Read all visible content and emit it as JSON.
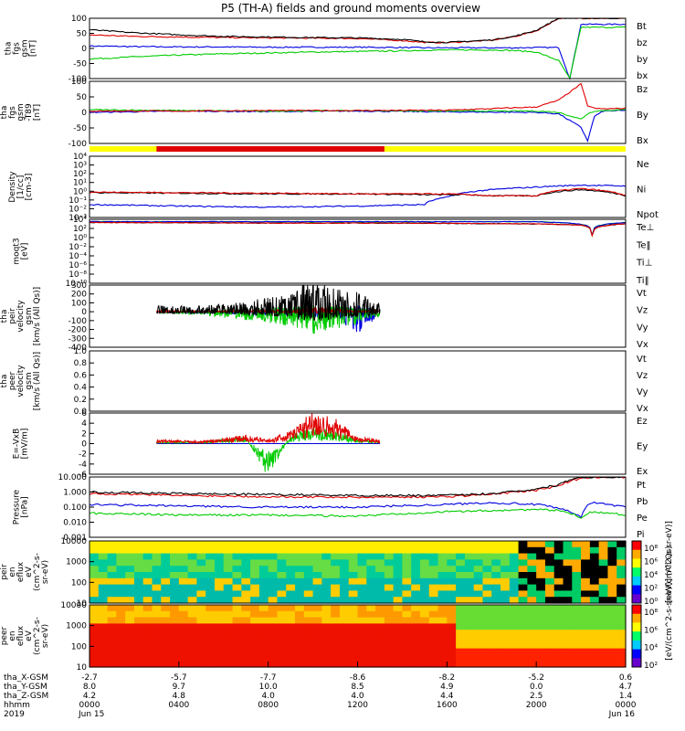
{
  "title": "P5 (TH-A) fields and ground moments overview",
  "legend_colors": {
    "black": "#000000",
    "red": "#e00000",
    "green": "#00cc00",
    "blue": "#0000e0",
    "yellow": "#ffff00"
  },
  "panels": [
    {
      "id": "fgs",
      "ylabel": [
        "tha",
        "fgs",
        "gsm",
        "[nT]"
      ],
      "ylim": [
        -100,
        100
      ],
      "ticks": [
        "100",
        "50",
        "0",
        "-50",
        "-100"
      ],
      "legend": [
        {
          "label": "Bt",
          "color": "#000000"
        },
        {
          "label": "bz",
          "color": "#e00000"
        },
        {
          "label": "by",
          "color": "#00cc00"
        },
        {
          "label": "bx",
          "color": "#0000e0"
        }
      ]
    },
    {
      "id": "fgs_t89",
      "ylabel": [
        "tha",
        "fgs",
        "gsm",
        "-T89",
        "[nT]"
      ],
      "ylim": [
        -120,
        110
      ],
      "ticks": [
        "100",
        "50",
        "0",
        "-50",
        "-100"
      ],
      "legend": [
        {
          "label": "Bz",
          "color": "#e00000"
        },
        {
          "label": "By",
          "color": "#00cc00"
        },
        {
          "label": "Bx",
          "color": "#0000e0"
        }
      ]
    },
    {
      "id": "density",
      "ylabel": [
        "Density",
        "[1/cc]",
        "[cm-3]"
      ],
      "ylim": [
        "1e-3",
        "1e4"
      ],
      "ticks": [
        "10⁴",
        "10³",
        "10²",
        "10¹",
        "10⁰",
        "10⁻¹",
        "10⁻²",
        "10⁻³"
      ],
      "legend": [
        {
          "label": "Ne",
          "color": "#e00000"
        },
        {
          "label": "Ni",
          "color": "#000000"
        },
        {
          "label": "Npot",
          "color": "#0000e0"
        }
      ]
    },
    {
      "id": "temp",
      "ylabel": [
        "moqt3",
        "[eV]"
      ],
      "ylim": [
        "1e-10",
        "1e4"
      ],
      "ticks": [
        "10⁴",
        "10²",
        "10⁰",
        "10⁻²",
        "10⁻⁴",
        "10⁻⁶",
        "10⁻⁸",
        "10⁻¹⁰"
      ],
      "legend": [
        {
          "label": "Te⊥",
          "color": "#e00000"
        },
        {
          "label": "Te‖",
          "color": "#000000"
        },
        {
          "label": "Ti⊥",
          "color": "#0000e0"
        },
        {
          "label": "Ti‖",
          "color": "#00cc00"
        }
      ]
    },
    {
      "id": "peir_v",
      "ylabel": [
        "tha",
        "peir",
        "velocity",
        "gsm",
        "[km/s (All Qs)]"
      ],
      "ylim": [
        -400,
        300
      ],
      "ticks": [
        "300",
        "200",
        "100",
        "0",
        "-100",
        "-200",
        "-300",
        "-400"
      ],
      "legend": [
        {
          "label": "Vt",
          "color": "#000000"
        },
        {
          "label": "Vz",
          "color": "#e00000"
        },
        {
          "label": "Vy",
          "color": "#00cc00"
        },
        {
          "label": "Vx",
          "color": "#0000e0"
        }
      ]
    },
    {
      "id": "peer_v",
      "ylabel": [
        "tha",
        "peer",
        "velocity",
        "gsm",
        "[km/s (All Qs)]"
      ],
      "ylim": [
        0,
        1
      ],
      "ticks": [
        "1.0",
        "0.8",
        "0.6",
        "0.4",
        "0.2",
        "0.0"
      ],
      "legend": [
        {
          "label": "Vt",
          "color": "#000000"
        },
        {
          "label": "Vz",
          "color": "#e00000"
        },
        {
          "label": "Vy",
          "color": "#00cc00"
        },
        {
          "label": "Vx",
          "color": "#0000e0"
        }
      ]
    },
    {
      "id": "efield",
      "ylabel": [
        "E=-VxB",
        "[mV/m]"
      ],
      "ylim": [
        -6,
        6
      ],
      "ticks": [
        "6",
        "4",
        "2",
        "0",
        "-2",
        "-4",
        "-6"
      ],
      "legend": [
        {
          "label": "Ez",
          "color": "#e00000"
        },
        {
          "label": "Ey",
          "color": "#00cc00"
        },
        {
          "label": "Ex",
          "color": "#0000e0"
        }
      ]
    },
    {
      "id": "pressure",
      "ylabel": [
        "Pressure",
        "[nPa]"
      ],
      "ylim": [
        0.001,
        10
      ],
      "ticks": [
        "10.000",
        "1.000",
        "0.100",
        "0.010",
        "0.001"
      ],
      "legend": [
        {
          "label": "Pt",
          "color": "#000000"
        },
        {
          "label": "Pb",
          "color": "#e00000"
        },
        {
          "label": "Pe",
          "color": "#00cc00"
        },
        {
          "label": "Pi",
          "color": "#0000e0"
        }
      ]
    },
    {
      "id": "peir_en",
      "ylabel": [
        "tha",
        "peir",
        "en",
        "eflux",
        "eV",
        "(cm^2-s-",
        "sr-eV)"
      ],
      "ylim": [
        5,
        30000
      ],
      "ticks": [
        "10000",
        "1000",
        "100",
        "10"
      ],
      "colorbar": [
        "10⁸",
        "10⁶",
        "10⁴",
        "10²",
        "10⁰"
      ]
    },
    {
      "id": "peer_en",
      "ylabel": [
        "tha",
        "peer",
        "en",
        "eflux",
        "eV",
        "(cm^2-s-",
        "sr-eV)"
      ],
      "ylim": [
        5,
        30000
      ],
      "ticks": [
        "10000",
        "1000",
        "100",
        "10"
      ],
      "colorbar": [
        "10⁸",
        "10⁶",
        "10⁴",
        "10²"
      ]
    }
  ],
  "colorbar_label": "[eV/(cm^2-s-sr-eV)] (All Qs)",
  "colorbar_label_upper": "[eV/(cm^2-s-sr-eV)]",
  "xaxis": {
    "row_labels": [
      "tha_X-GSM",
      "tha_Y-GSM",
      "tha_Z-GSM",
      "hhmm",
      "2019"
    ],
    "columns": [
      [
        "-2.7",
        "8.0",
        "4.2",
        "0000",
        "Jun 15"
      ],
      [
        "-5.7",
        "9.7",
        "4.8",
        "0400",
        ""
      ],
      [
        "-7.7",
        "10.0",
        "4.0",
        "0800",
        ""
      ],
      [
        "-8.6",
        "8.5",
        "4.0",
        "1200",
        ""
      ],
      [
        "-8.2",
        "4.9",
        "4.4",
        "1600",
        ""
      ],
      [
        "-5.2",
        "0.0",
        "2.5",
        "2000",
        ""
      ],
      [
        "0.6",
        "4.7",
        "1.4",
        "0000",
        "Jun 16"
      ]
    ],
    "hours": [
      0,
      4,
      8,
      12,
      16,
      20,
      24
    ]
  },
  "chart_data": [
    {
      "type": "line",
      "title": "P5 (TH-A) fields and ground moments overview",
      "ylabel": "tha fgs gsm [nT]",
      "ylim": [
        -100,
        100
      ],
      "x_hours": [
        0,
        2,
        4,
        6,
        8,
        10,
        12,
        14,
        15,
        16,
        18,
        19,
        20,
        21,
        21.5,
        22,
        24
      ],
      "series": [
        {
          "name": "Bt",
          "values": [
            62,
            52,
            45,
            40,
            38,
            36,
            35,
            30,
            22,
            20,
            28,
            40,
            60,
            100,
            100,
            100,
            100
          ]
        },
        {
          "name": "bz",
          "values": [
            45,
            40,
            38,
            36,
            35,
            34,
            33,
            26,
            20,
            19,
            27,
            39,
            58,
            100,
            100,
            100,
            100
          ]
        },
        {
          "name": "by",
          "values": [
            -35,
            -28,
            -22,
            -18,
            -15,
            -12,
            -10,
            -8,
            -6,
            -5,
            -5,
            -7,
            -12,
            -40,
            -100,
            70,
            70
          ]
        },
        {
          "name": "bx",
          "values": [
            8,
            6,
            5,
            5,
            4,
            4,
            4,
            3,
            2,
            2,
            2,
            2,
            3,
            3,
            -100,
            80,
            80
          ]
        }
      ]
    },
    {
      "type": "line",
      "ylabel": "tha fgs gsm-T89 [nT]",
      "ylim": [
        -120,
        110
      ],
      "x_hours": [
        0,
        4,
        8,
        12,
        16,
        20,
        21,
        22,
        22.3,
        22.6,
        23,
        24
      ],
      "series": [
        {
          "name": "Bz",
          "values": [
            0,
            0,
            2,
            2,
            3,
            15,
            40,
            100,
            20,
            10,
            8,
            10
          ]
        },
        {
          "name": "By",
          "values": [
            5,
            2,
            0,
            2,
            0,
            0,
            -5,
            -30,
            -10,
            0,
            2,
            5
          ]
        },
        {
          "name": "Bx",
          "values": [
            -5,
            0,
            -2,
            0,
            -3,
            -5,
            -10,
            -60,
            -110,
            -20,
            0,
            2
          ]
        }
      ]
    },
    {
      "type": "line",
      "ylabel": "Density [1/cc] [cm-3]",
      "ylim": [
        0.001,
        10000
      ],
      "yscale": "log",
      "x_hours": [
        0,
        4,
        8,
        12,
        15,
        16,
        17,
        18,
        20,
        22,
        24
      ],
      "series": [
        {
          "name": "Ne",
          "values": [
            0.8,
            0.7,
            0.6,
            0.5,
            0.5,
            0.5,
            0.4,
            0.3,
            0.3,
            2.0,
            0.3
          ]
        },
        {
          "name": "Ni",
          "values": [
            0.7,
            0.6,
            0.5,
            0.5,
            0.4,
            0.4,
            0.4,
            0.3,
            0.3,
            1.5,
            0.3
          ]
        },
        {
          "name": "Npot",
          "values": [
            0.03,
            0.02,
            0.015,
            0.02,
            0.03,
            0.2,
            0.8,
            1.5,
            3.0,
            5.0,
            4.0
          ]
        }
      ]
    },
    {
      "type": "line",
      "ylabel": "moqt3 [eV]",
      "ylim": [
        "1e-10",
        10000
      ],
      "yscale": "log",
      "x_hours": [
        0,
        4,
        8,
        12,
        16,
        20,
        22,
        22.5,
        24
      ],
      "series": [
        {
          "name": "Te⊥",
          "values": [
            2000,
            1800,
            1500,
            1500,
            1300,
            1000,
            500,
            3,
            1000
          ]
        },
        {
          "name": "Te‖",
          "values": [
            2000,
            1800,
            1500,
            1500,
            1300,
            1000,
            500,
            3,
            1000
          ]
        },
        {
          "name": "Ti⊥",
          "values": [
            3000,
            3000,
            3000,
            3000,
            3000,
            3000,
            800,
            3,
            2000
          ]
        },
        {
          "name": "Ti‖",
          "values": [
            3000,
            3000,
            3000,
            3000,
            3000,
            3000,
            800,
            3,
            2000
          ]
        }
      ]
    },
    {
      "type": "line",
      "ylabel": "tha peir velocity gsm [km/s (All Qs)]",
      "ylim": [
        -400,
        300
      ],
      "x_hours": [
        3,
        5,
        7,
        9,
        10,
        11,
        12,
        13
      ],
      "series": [
        {
          "name": "Vt",
          "values": [
            40,
            40,
            70,
            120,
            250,
            150,
            130,
            60
          ]
        },
        {
          "name": "Vz",
          "values": [
            10,
            5,
            10,
            20,
            30,
            20,
            15,
            10
          ]
        },
        {
          "name": "Vy",
          "values": [
            -10,
            -20,
            -60,
            -100,
            -150,
            -120,
            -80,
            -30
          ]
        },
        {
          "name": "Vx",
          "values": [
            -5,
            -10,
            -20,
            -30,
            -60,
            -40,
            -150,
            -20
          ]
        }
      ]
    },
    {
      "type": "line",
      "ylabel": "tha peer velocity gsm [km/s (All Qs)]",
      "ylim": [
        0,
        1
      ],
      "series": []
    },
    {
      "type": "line",
      "ylabel": "E=-VxB [mV/m]",
      "ylim": [
        -6,
        6
      ],
      "x_hours": [
        3,
        5,
        7,
        8,
        9,
        10,
        11,
        12,
        13
      ],
      "series": [
        {
          "name": "Ez",
          "values": [
            0.5,
            0.3,
            1.0,
            0.5,
            1.5,
            4.0,
            3.0,
            0.8,
            0.5
          ]
        },
        {
          "name": "Ey",
          "values": [
            0.2,
            0.2,
            0.8,
            -4.0,
            1.0,
            2.0,
            1.5,
            0.5,
            0.3
          ]
        },
        {
          "name": "Ex",
          "values": [
            0,
            0,
            0,
            0,
            0,
            0,
            0,
            0,
            0
          ]
        }
      ]
    },
    {
      "type": "line",
      "ylabel": "Pressure [nPa]",
      "ylim": [
        0.001,
        10
      ],
      "yscale": "log",
      "x_hours": [
        0,
        4,
        8,
        12,
        16,
        18,
        20,
        21,
        22,
        22.5,
        24
      ],
      "series": [
        {
          "name": "Pt",
          "values": [
            1.0,
            0.8,
            0.7,
            0.6,
            0.6,
            0.8,
            1.5,
            3,
            10,
            10,
            10
          ]
        },
        {
          "name": "Pb",
          "values": [
            0.8,
            0.6,
            0.5,
            0.45,
            0.5,
            0.7,
            1.3,
            2.5,
            8,
            10,
            10
          ]
        },
        {
          "name": "Pe",
          "values": [
            0.04,
            0.03,
            0.03,
            0.025,
            0.05,
            0.06,
            0.07,
            0.06,
            0.02,
            0.05,
            0.03
          ]
        },
        {
          "name": "Pi",
          "values": [
            0.15,
            0.12,
            0.1,
            0.1,
            0.15,
            0.2,
            0.15,
            0.08,
            0.02,
            0.2,
            0.1
          ]
        }
      ]
    },
    {
      "type": "heatmap",
      "ylabel": "tha peir en eflux eV (cm^2-s-sr-eV)",
      "yscale": "log",
      "ylim": [
        5,
        30000
      ],
      "colorbar": [
        "10⁰",
        "10⁸"
      ]
    },
    {
      "type": "heatmap",
      "ylabel": "tha peer en eflux eV (cm^2-s-sr-eV)",
      "yscale": "log",
      "ylim": [
        5,
        30000
      ],
      "colorbar": [
        "10²",
        "10⁸"
      ]
    }
  ]
}
